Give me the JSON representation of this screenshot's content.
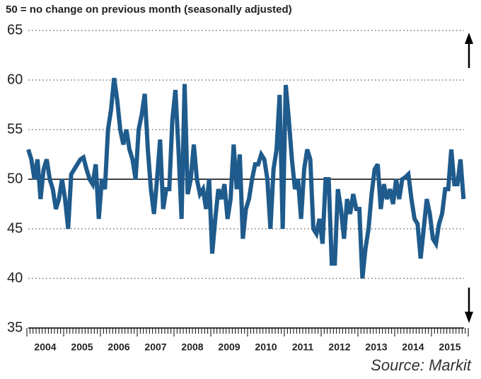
{
  "chart_data": {
    "type": "line",
    "title": "50 = no change on previous month (seasonally adjusted)",
    "source": "Source: Markit",
    "categories": [
      null,
      null,
      null,
      null,
      null,
      null,
      "2004",
      null,
      null,
      null,
      null,
      null,
      null,
      null,
      null,
      null,
      null,
      null,
      "2005",
      null,
      null,
      null,
      null,
      null,
      null,
      null,
      null,
      null,
      null,
      null,
      "2006",
      null,
      null,
      null,
      null,
      null,
      null,
      null,
      null,
      null,
      null,
      null,
      "2007",
      null,
      null,
      null,
      null,
      null,
      null,
      null,
      null,
      null,
      null,
      null,
      "2008",
      null,
      null,
      null,
      null,
      null,
      null,
      null,
      null,
      null,
      null,
      null,
      "2009",
      null,
      null,
      null,
      null,
      null,
      null,
      null,
      null,
      null,
      null,
      null,
      "2010",
      null,
      null,
      null,
      null,
      null,
      null,
      null,
      null,
      null,
      null,
      null,
      "2011",
      null,
      null,
      null,
      null,
      null,
      null,
      null,
      null,
      null,
      null,
      null,
      "2012",
      null,
      null,
      null,
      null,
      null,
      null,
      null,
      null,
      null,
      null,
      null,
      "2013",
      null,
      null,
      null,
      null,
      null,
      null,
      null,
      null,
      null,
      null,
      null,
      "2014",
      null,
      null,
      null,
      null,
      null,
      null,
      null,
      null,
      null,
      null,
      null,
      "2015",
      null,
      null,
      null,
      null
    ],
    "values": [
      53,
      52,
      50,
      52,
      48,
      51,
      52,
      50,
      49,
      47,
      48,
      50,
      48,
      45,
      50.5,
      51,
      51.5,
      52,
      52.2,
      51,
      50,
      49.5,
      51.5,
      46,
      50,
      49,
      55,
      57,
      60.2,
      58,
      55,
      53.5,
      55,
      53,
      52,
      50,
      55,
      56.5,
      58.6,
      53,
      49,
      46.5,
      50,
      54,
      47,
      49,
      49,
      56,
      59,
      53,
      46,
      59.6,
      48.5,
      50,
      53.5,
      50,
      48.5,
      49,
      47,
      50,
      42.5,
      46,
      49,
      48,
      49.5,
      46,
      48,
      53.5,
      49,
      52.5,
      44,
      47,
      48,
      50,
      51.5,
      51.5,
      52.5,
      52,
      50,
      45,
      51,
      53,
      58.5,
      45,
      59.5,
      56,
      52,
      49,
      50,
      46,
      51,
      53,
      52,
      45,
      44.5,
      46,
      43.5,
      50,
      50,
      41.5,
      41.5,
      49,
      47,
      44,
      48,
      46.5,
      48.5,
      47,
      47,
      40,
      43,
      45,
      48.5,
      51,
      51.5,
      47,
      49.5,
      48,
      49,
      47.5,
      50,
      48,
      50,
      50.2,
      50.5,
      48,
      46,
      45.5,
      42,
      45,
      48,
      46.5,
      44,
      43.5,
      45.5,
      46.5,
      49,
      49,
      53,
      49.5,
      49.5,
      52,
      48
    ],
    "color": "#1f5b8c",
    "ylim": [
      35,
      65
    ],
    "yticks": [
      35,
      40,
      45,
      50,
      55,
      60,
      65
    ],
    "reference_line": 50,
    "grid": true
  }
}
